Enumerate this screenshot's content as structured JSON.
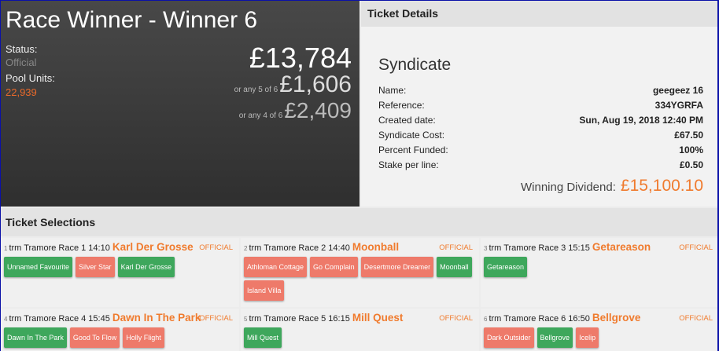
{
  "header": {
    "title": "Race Winner - Winner 6",
    "status_label": "Status:",
    "status_value": "Official",
    "pool_units_label": "Pool Units:",
    "pool_units_value": "22,939",
    "dividend_main": "£13,784",
    "any5_label": "or any 5 of 6",
    "any5_value": "£1,606",
    "any4_label": "or any 4 of 6",
    "any4_value": "£2,409"
  },
  "ticket": {
    "title": "Ticket Details",
    "type": "Syndicate",
    "rows": [
      {
        "label": "Name:",
        "value": "geegeez 16"
      },
      {
        "label": "Reference:",
        "value": "334YGRFA"
      },
      {
        "label": "Created date:",
        "value": "Sun, Aug 19, 2018 12:40 PM"
      },
      {
        "label": "Syndicate Cost:",
        "value": "£67.50"
      },
      {
        "label": "Percent Funded:",
        "value": "100%"
      },
      {
        "label": "Stake per line:",
        "value": "£0.50"
      }
    ],
    "winning_label": "Winning Dividend:",
    "winning_value": "£15,100.10"
  },
  "selections": {
    "title": "Ticket Selections",
    "races": [
      {
        "num": "1",
        "race": "trm Tramore Race 1 14:10",
        "winner": "Karl Der Grosse",
        "status": "OFFICIAL",
        "horses": [
          {
            "name": "Unnamed Favourite",
            "won": true
          },
          {
            "name": "Silver Star",
            "won": false
          },
          {
            "name": "Karl Der Grosse",
            "won": true
          }
        ]
      },
      {
        "num": "2",
        "race": "trm Tramore Race 2 14:40",
        "winner": "Moonball",
        "status": "OFFICIAL",
        "horses": [
          {
            "name": "Athloman Cottage",
            "won": false
          },
          {
            "name": "Go Complain",
            "won": false
          },
          {
            "name": "Desertmore Dreamer",
            "won": false
          },
          {
            "name": "Moonball",
            "won": true
          },
          {
            "name": "Island Villa",
            "won": false
          }
        ]
      },
      {
        "num": "3",
        "race": "trm Tramore Race 3 15:15",
        "winner": "Getareason",
        "status": "OFFICIAL",
        "horses": [
          {
            "name": "Getareason",
            "won": true
          }
        ]
      },
      {
        "num": "4",
        "race": "trm Tramore Race 4 15:45",
        "winner": "Dawn In The Park",
        "status": "OFFICIAL",
        "horses": [
          {
            "name": "Dawn In The Park",
            "won": true
          },
          {
            "name": "Good To Flow",
            "won": false
          },
          {
            "name": "Holly Flight",
            "won": false
          }
        ]
      },
      {
        "num": "5",
        "race": "trm Tramore Race 5 16:15",
        "winner": "Mill Quest",
        "status": "OFFICIAL",
        "horses": [
          {
            "name": "Mill Quest",
            "won": true
          }
        ]
      },
      {
        "num": "6",
        "race": "trm Tramore Race 6 16:50",
        "winner": "Bellgrove",
        "status": "OFFICIAL",
        "horses": [
          {
            "name": "Dark Outsider",
            "won": false
          },
          {
            "name": "Bellgrove",
            "won": true
          },
          {
            "name": "Icelip",
            "won": false
          }
        ]
      }
    ]
  },
  "colors": {
    "accent": "#f07b2e",
    "win": "#3ea75c",
    "lose": "#ee7a6a"
  }
}
